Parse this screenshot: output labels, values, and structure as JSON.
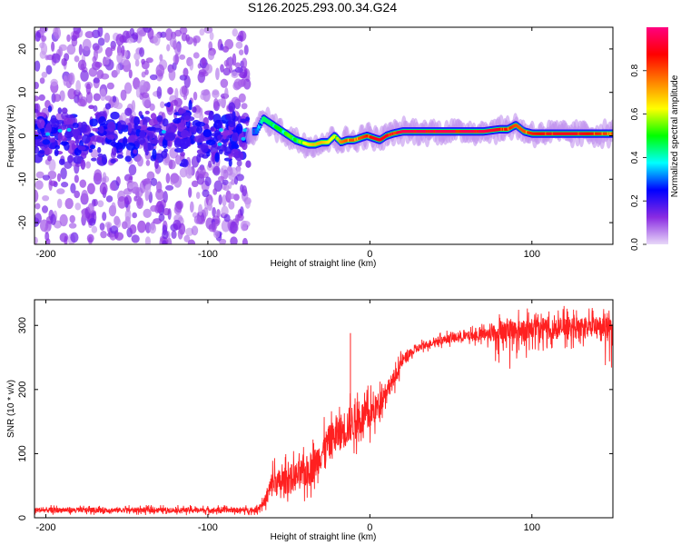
{
  "title": "S126.2025.293.00.34.G24",
  "chart_data": [
    {
      "type": "heatmap",
      "name": "spectrogram",
      "xlabel": "Height of straight line (km)",
      "ylabel": "Frequency (Hz)",
      "xlim": [
        -207,
        150
      ],
      "ylim": [
        -25,
        25
      ],
      "xticks": [
        -200,
        -100,
        0,
        100
      ],
      "yticks": [
        -20,
        -10,
        0,
        10,
        20
      ],
      "colorbar": {
        "label": "Normalized spectral amplitude",
        "range": [
          0,
          1
        ],
        "ticks": [
          "0.0",
          "0.2",
          "0.4",
          "0.6",
          "0.8"
        ],
        "colors": [
          "#e8d8f8",
          "#8a2be2",
          "#0000ff",
          "#00ffff",
          "#00ff00",
          "#ffff00",
          "#ff8000",
          "#ff0000",
          "#ff0080"
        ]
      },
      "signal_track": {
        "x": [
          -70,
          -66,
          -62,
          -58,
          -54,
          -50,
          -46,
          -42,
          -38,
          -34,
          -30,
          -26,
          -22,
          -18,
          -14,
          -10,
          -6,
          -2,
          2,
          6,
          10,
          14,
          20,
          30,
          40,
          50,
          60,
          70,
          80,
          85,
          90,
          95,
          100,
          110,
          120,
          130,
          140,
          150
        ],
        "y": [
          1,
          4,
          3,
          2,
          1,
          0,
          -1,
          -1.5,
          -2,
          -2,
          -1.5,
          -1.5,
          0,
          -1.5,
          -1,
          -1,
          -0.5,
          0,
          -0.5,
          -1,
          0,
          0.5,
          1,
          1,
          1,
          1,
          1,
          1,
          1.5,
          1.5,
          2.5,
          1,
          0.5,
          0.5,
          0.5,
          0.5,
          0.5,
          0.5
        ],
        "amplitude": [
          0.3,
          0.45,
          0.45,
          0.5,
          0.5,
          0.55,
          0.5,
          0.6,
          0.65,
          0.7,
          0.7,
          0.65,
          0.6,
          0.75,
          0.8,
          0.8,
          0.8,
          0.85,
          0.9,
          0.9,
          0.9,
          0.92,
          0.95,
          0.95,
          0.95,
          0.95,
          0.95,
          0.95,
          0.9,
          0.85,
          0.8,
          0.8,
          0.85,
          0.9,
          0.9,
          0.9,
          0.85,
          0.8
        ]
      },
      "noise_region_x": [
        -207,
        -75
      ]
    },
    {
      "type": "line",
      "name": "snr",
      "xlabel": "Height of straight line (km)",
      "ylabel": "SNR (10 * v/v)",
      "xlim": [
        -207,
        150
      ],
      "ylim": [
        0,
        340
      ],
      "xticks": [
        -200,
        -100,
        0,
        100
      ],
      "yticks": [
        0,
        100,
        200,
        300
      ],
      "color": "#ff2020",
      "series": [
        {
          "name": "SNR",
          "x": [
            -207,
            -150,
            -100,
            -70,
            -65,
            -60,
            -55,
            -50,
            -45,
            -40,
            -35,
            -30,
            -25,
            -20,
            -15,
            -10,
            -5,
            0,
            5,
            10,
            15,
            20,
            25,
            30,
            40,
            50,
            60,
            70,
            80,
            90,
            100,
            110,
            120,
            130,
            140,
            150
          ],
          "y": [
            12,
            12,
            12,
            12,
            25,
            55,
            55,
            60,
            65,
            70,
            80,
            100,
            120,
            130,
            140,
            150,
            155,
            160,
            175,
            200,
            215,
            245,
            255,
            265,
            275,
            280,
            283,
            285,
            290,
            292,
            293,
            295,
            296,
            297,
            298,
            298
          ],
          "noise": [
            8,
            8,
            8,
            8,
            15,
            45,
            40,
            45,
            45,
            50,
            50,
            50,
            50,
            55,
            60,
            55,
            55,
            50,
            40,
            30,
            25,
            20,
            15,
            12,
            12,
            14,
            15,
            20,
            30,
            35,
            35,
            35,
            35,
            30,
            30,
            30
          ]
        }
      ],
      "spikes": [
        {
          "x": -12,
          "y": 288
        }
      ]
    }
  ]
}
